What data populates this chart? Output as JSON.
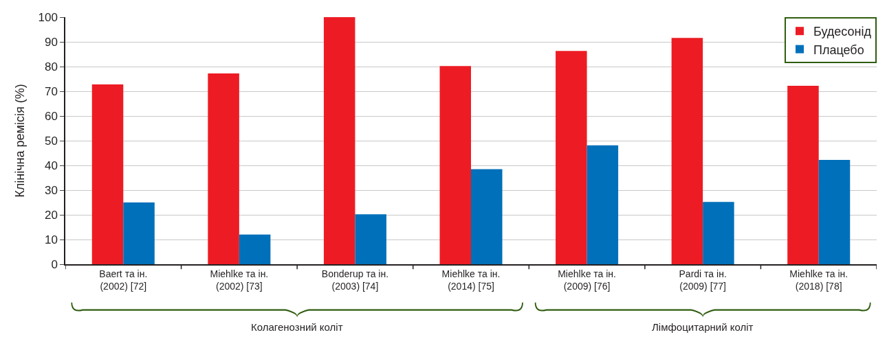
{
  "chart_data": {
    "type": "bar",
    "ylabel": "Клінічна ремісія (%)",
    "categories": [
      "Baert та ін.\n(2002) [72]",
      "Miehlke та ін.\n(2002) [73]",
      "Bonderup та ін.\n(2003) [74]",
      "Miehlke та ін.\n(2014) [75]",
      "Miehlke та ін.\n(2009) [76]",
      "Pardi та ін.\n(2009) [77]",
      "Miehlke та ін.\n(2018) [78]"
    ],
    "series": [
      {
        "name": "Будесонід",
        "color": "#ed1c24",
        "values": [
          72.8,
          77.2,
          100,
          80.2,
          86.3,
          91.6,
          72.2
        ]
      },
      {
        "name": "Плацебо",
        "color": "#0070ba",
        "values": [
          25.0,
          12.0,
          20.2,
          38.5,
          48.1,
          25.2,
          42.2
        ]
      }
    ],
    "annotations": [
      "Колагенозний коліт",
      "Лімфоцитарний коліт"
    ],
    "ylim": [
      0,
      100
    ],
    "yticks": [
      0,
      10,
      20,
      30,
      40,
      50,
      60,
      70,
      80,
      90,
      100
    ],
    "grid": "y",
    "legend": "top right"
  }
}
